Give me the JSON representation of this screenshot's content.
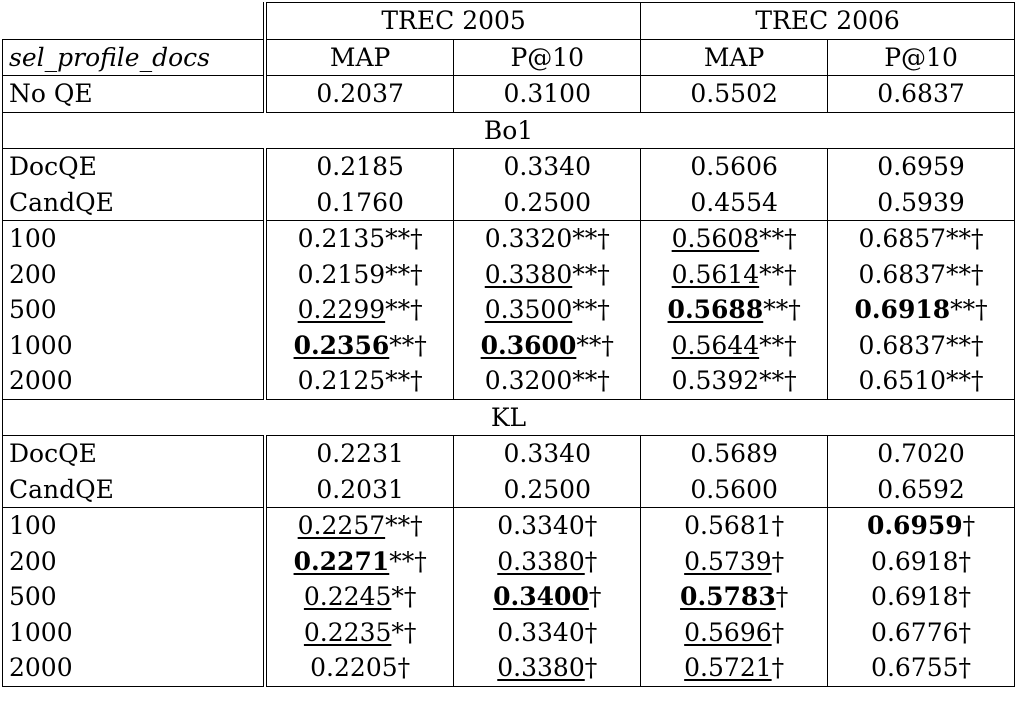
{
  "header": {
    "group1": "TREC 2005",
    "group2": "TREC 2006",
    "row_label": "sel_profile_docs",
    "cols": [
      "MAP",
      "P@10",
      "MAP",
      "P@10"
    ]
  },
  "baseline": {
    "label": "No QE",
    "v": [
      "0.2037",
      "0.3100",
      "0.5502",
      "0.6837"
    ]
  },
  "sections": [
    {
      "title": "Bo1",
      "qe_rows": [
        {
          "label": "DocQE",
          "v": [
            "0.2185",
            "0.3340",
            "0.5606",
            "0.6959"
          ]
        },
        {
          "label": "CandQE",
          "v": [
            "0.1760",
            "0.2500",
            "0.4554",
            "0.5939"
          ]
        }
      ],
      "rows": [
        {
          "label": "100",
          "cells": [
            {
              "num": "0.2135",
              "sup": "**",
              "dag": "†",
              "u": false,
              "b": false
            },
            {
              "num": "0.3320",
              "sup": "**",
              "dag": "†",
              "u": false,
              "b": false
            },
            {
              "num": "0.5608",
              "sup": "**",
              "dag": "†",
              "u": true,
              "b": false
            },
            {
              "num": "0.6857",
              "sup": "**",
              "dag": "†",
              "u": false,
              "b": false
            }
          ]
        },
        {
          "label": "200",
          "cells": [
            {
              "num": "0.2159",
              "sup": "**",
              "dag": "†",
              "u": false,
              "b": false
            },
            {
              "num": "0.3380",
              "sup": "**",
              "dag": "†",
              "u": true,
              "b": false
            },
            {
              "num": "0.5614",
              "sup": "**",
              "dag": "†",
              "u": true,
              "b": false
            },
            {
              "num": "0.6837",
              "sup": "**",
              "dag": "†",
              "u": false,
              "b": false
            }
          ]
        },
        {
          "label": "500",
          "cells": [
            {
              "num": "0.2299",
              "sup": "**",
              "dag": "†",
              "u": true,
              "b": false
            },
            {
              "num": "0.3500",
              "sup": "**",
              "dag": "†",
              "u": true,
              "b": false
            },
            {
              "num": "0.5688",
              "sup": "**",
              "dag": "†",
              "u": true,
              "b": true
            },
            {
              "num": "0.6918",
              "sup": "**",
              "dag": "†",
              "u": false,
              "b": true
            }
          ]
        },
        {
          "label": "1000",
          "cells": [
            {
              "num": "0.2356",
              "sup": "**",
              "dag": "†",
              "u": true,
              "b": true
            },
            {
              "num": "0.3600",
              "sup": "**",
              "dag": "†",
              "u": true,
              "b": true
            },
            {
              "num": "0.5644",
              "sup": "**",
              "dag": "†",
              "u": true,
              "b": false
            },
            {
              "num": "0.6837",
              "sup": "**",
              "dag": "†",
              "u": false,
              "b": false
            }
          ]
        },
        {
          "label": "2000",
          "cells": [
            {
              "num": "0.2125",
              "sup": "**",
              "dag": "†",
              "u": false,
              "b": false
            },
            {
              "num": "0.3200",
              "sup": "**",
              "dag": "†",
              "u": false,
              "b": false
            },
            {
              "num": "0.5392",
              "sup": "**",
              "dag": "†",
              "u": false,
              "b": false
            },
            {
              "num": "0.6510",
              "sup": "**",
              "dag": "†",
              "u": false,
              "b": false
            }
          ]
        }
      ]
    },
    {
      "title": "KL",
      "qe_rows": [
        {
          "label": "DocQE",
          "v": [
            "0.2231",
            "0.3340",
            "0.5689",
            "0.7020"
          ]
        },
        {
          "label": "CandQE",
          "v": [
            "0.2031",
            "0.2500",
            "0.5600",
            "0.6592"
          ]
        }
      ],
      "rows": [
        {
          "label": "100",
          "cells": [
            {
              "num": "0.2257",
              "sup": "**",
              "dag": "†",
              "u": true,
              "b": false
            },
            {
              "num": "0.3340",
              "sup": "",
              "dag": "†",
              "u": false,
              "b": false
            },
            {
              "num": "0.5681",
              "sup": "",
              "dag": "†",
              "u": false,
              "b": false
            },
            {
              "num": "0.6959",
              "sup": "",
              "dag": "†",
              "u": false,
              "b": true
            }
          ]
        },
        {
          "label": "200",
          "cells": [
            {
              "num": "0.2271",
              "sup": "**",
              "dag": "†",
              "u": true,
              "b": true
            },
            {
              "num": "0.3380",
              "sup": "",
              "dag": "†",
              "u": true,
              "b": false
            },
            {
              "num": "0.5739",
              "sup": "",
              "dag": "†",
              "u": true,
              "b": false
            },
            {
              "num": "0.6918",
              "sup": "",
              "dag": "†",
              "u": false,
              "b": false
            }
          ]
        },
        {
          "label": "500",
          "cells": [
            {
              "num": "0.2245",
              "sup": "*",
              "dag": "†",
              "u": true,
              "b": false
            },
            {
              "num": "0.3400",
              "sup": "",
              "dag": "†",
              "u": true,
              "b": true
            },
            {
              "num": "0.5783",
              "sup": "",
              "dag": "†",
              "u": true,
              "b": true
            },
            {
              "num": "0.6918",
              "sup": "",
              "dag": "†",
              "u": false,
              "b": false
            }
          ]
        },
        {
          "label": "1000",
          "cells": [
            {
              "num": "0.2235",
              "sup": "*",
              "dag": "†",
              "u": true,
              "b": false
            },
            {
              "num": "0.3340",
              "sup": "",
              "dag": "†",
              "u": false,
              "b": false
            },
            {
              "num": "0.5696",
              "sup": "",
              "dag": "†",
              "u": true,
              "b": false
            },
            {
              "num": "0.6776",
              "sup": "",
              "dag": "†",
              "u": false,
              "b": false
            }
          ]
        },
        {
          "label": "2000",
          "cells": [
            {
              "num": "0.2205",
              "sup": "",
              "dag": "†",
              "u": false,
              "b": false
            },
            {
              "num": "0.3380",
              "sup": "",
              "dag": "†",
              "u": true,
              "b": false
            },
            {
              "num": "0.5721",
              "sup": "",
              "dag": "†",
              "u": true,
              "b": false
            },
            {
              "num": "0.6755",
              "sup": "",
              "dag": "†",
              "u": false,
              "b": false
            }
          ]
        }
      ]
    }
  ]
}
